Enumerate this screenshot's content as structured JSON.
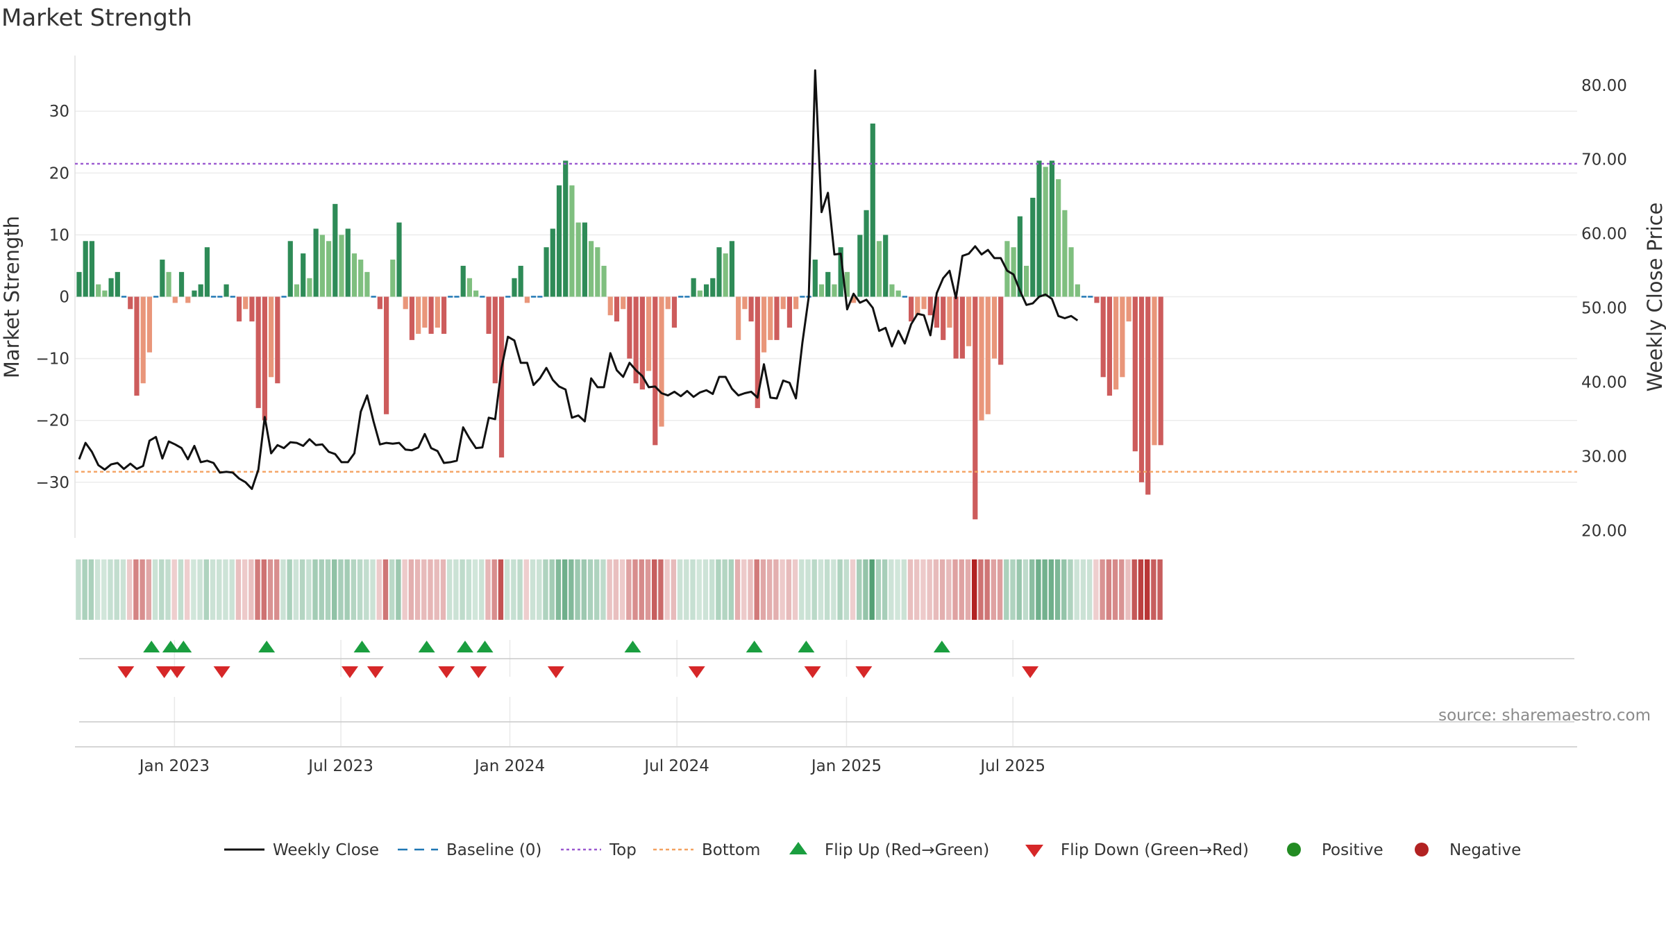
{
  "chart_data": {
    "type": "bar",
    "title": "Market Strength",
    "ylabel_left": "Market Strength",
    "ylabel_right": "Weekly Close Price",
    "ylim_left": [
      -39,
      39
    ],
    "ylim_right": [
      19,
      84
    ],
    "left_ticks": [
      30,
      20,
      10,
      0,
      -10,
      -20,
      -30
    ],
    "left_tick_labels": [
      "30",
      "20",
      "10",
      "0",
      "−10",
      "−20",
      "−30"
    ],
    "right_ticks": [
      80,
      70,
      60,
      50,
      40,
      30,
      20
    ],
    "right_tick_labels": [
      "80.00",
      "70.00",
      "60.00",
      "50.00",
      "40.00",
      "30.00",
      "20.00"
    ],
    "top_level": 21.5,
    "bottom_level": -28.3,
    "x_start_week": 0,
    "x_tick_labels": [
      "Jan 2023",
      "Jul 2023",
      "Jan 2024",
      "Jul 2024",
      "Jan 2025",
      "Jul 2025"
    ],
    "x_tick_weeks": [
      14.9,
      40.9,
      67.3,
      93.4,
      119.9,
      145.9
    ],
    "strength": [
      4,
      9,
      9,
      2,
      1,
      3,
      4,
      0,
      -2,
      -16,
      -14,
      -9,
      0,
      6,
      4,
      -1,
      4,
      -1,
      1,
      2,
      8,
      0,
      0,
      2,
      0,
      -4,
      -2,
      -4,
      -18,
      -20,
      -13,
      -14,
      0,
      9,
      2,
      7,
      3,
      11,
      10,
      9,
      15,
      10,
      11,
      7,
      6,
      4,
      0,
      -2,
      -19,
      6,
      12,
      -2,
      -7,
      -6,
      -5,
      -6,
      -5,
      -6,
      0,
      0,
      5,
      3,
      1,
      0,
      -6,
      -14,
      -26,
      0,
      3,
      5,
      -1,
      0,
      0,
      8,
      11,
      18,
      22,
      18,
      12,
      12,
      9,
      8,
      5,
      -3,
      -4,
      -2,
      -10,
      -14,
      -15,
      -12,
      -24,
      -21,
      -2,
      -5,
      0,
      0,
      3,
      1,
      2,
      3,
      8,
      7,
      9,
      -7,
      -2,
      -4,
      -18,
      -9,
      -7,
      -7,
      -2,
      -5,
      -2,
      0,
      0,
      6,
      2,
      4,
      2,
      8,
      4,
      -1,
      10,
      14,
      28,
      9,
      10,
      2,
      1,
      0,
      -4,
      -3,
      -2,
      -3,
      -5,
      -7,
      -5,
      -10,
      -10,
      -8,
      -36,
      -20,
      -19,
      -10,
      -11,
      9,
      8,
      13,
      5,
      16,
      22,
      21,
      22,
      19,
      14,
      8,
      2,
      0,
      0,
      -1,
      -13,
      -16,
      -15,
      -13,
      -4,
      -25,
      -30,
      -32,
      -24,
      -24
    ],
    "close": [
      29.6,
      31.8,
      30.6,
      28.8,
      28.2,
      28.9,
      29.1,
      28.3,
      29.0,
      28.3,
      28.7,
      32.1,
      32.6,
      29.7,
      32.0,
      31.6,
      31.1,
      29.6,
      31.4,
      29.2,
      29.4,
      29.1,
      27.8,
      27.9,
      27.8,
      27.0,
      26.5,
      25.6,
      28.2,
      35.3,
      30.4,
      31.5,
      31.1,
      31.9,
      31.8,
      31.4,
      32.3,
      31.5,
      31.6,
      30.6,
      30.3,
      29.2,
      29.2,
      30.4,
      36.0,
      38.2,
      34.7,
      31.6,
      31.8,
      31.7,
      31.8,
      30.9,
      30.8,
      31.2,
      33.0,
      31.1,
      30.7,
      29.1,
      29.2,
      29.4,
      33.9,
      32.4,
      31.1,
      31.2,
      35.2,
      35.0,
      41.9,
      46.1,
      45.6,
      42.6,
      42.6,
      39.6,
      40.5,
      41.9,
      40.3,
      39.4,
      39.0,
      35.2,
      35.5,
      34.7,
      40.5,
      39.3,
      39.3,
      43.9,
      41.6,
      40.7,
      42.6,
      41.6,
      40.8,
      39.3,
      39.4,
      38.5,
      38.2,
      38.7,
      38.1,
      38.8,
      38.0,
      38.6,
      38.9,
      38.4,
      40.7,
      40.7,
      39.1,
      38.2,
      38.5,
      38.7,
      37.9,
      42.4,
      37.9,
      37.8,
      40.2,
      39.9,
      37.8,
      45.3,
      51.5,
      82.0,
      62.9,
      65.5,
      57.2,
      57.3,
      49.8,
      51.9,
      50.7,
      51.1,
      50.0,
      46.9,
      47.3,
      44.8,
      46.9,
      45.2,
      47.8,
      49.2,
      49.0,
      46.3,
      52.0,
      54.0,
      55.0,
      51.3,
      57.0,
      57.3,
      58.3,
      57.2,
      57.8,
      56.7,
      56.7,
      55.0,
      54.5,
      52.3,
      50.4,
      50.6,
      51.5,
      51.8,
      51.2,
      48.9,
      48.6,
      48.9,
      48.3
    ],
    "flip_up_weeks": [
      11.3,
      14.3,
      16.3,
      29.3,
      44.2,
      54.3,
      60.3,
      63.4,
      86.5,
      105.5,
      113.6,
      134.8
    ],
    "flip_down_weeks": [
      7.3,
      13.3,
      15.3,
      22.3,
      42.3,
      46.3,
      57.4,
      62.4,
      74.5,
      96.5,
      114.6,
      122.6,
      148.6
    ],
    "source": "source: sharemaestro.com",
    "legend": [
      "Weekly Close",
      "Baseline (0)",
      "Top",
      "Bottom",
      "Flip Up (Red→Green)",
      "Flip Down (Green→Red)",
      "Positive",
      "Negative"
    ],
    "colors": {
      "pos_strong": "#2e8b57",
      "pos_weak": "#7fbf7f",
      "neg_strong": "#cd5c5c",
      "neg_weak": "#e9967a",
      "line": "#111111",
      "baseline": "#1f77b4",
      "top": "#9b59d0",
      "bottom": "#f4a261",
      "flip_up": "#1a9e3f",
      "flip_down": "#d62728",
      "positive_dot": "#228b22",
      "negative_dot": "#b22222",
      "grid": "#ececec"
    }
  }
}
